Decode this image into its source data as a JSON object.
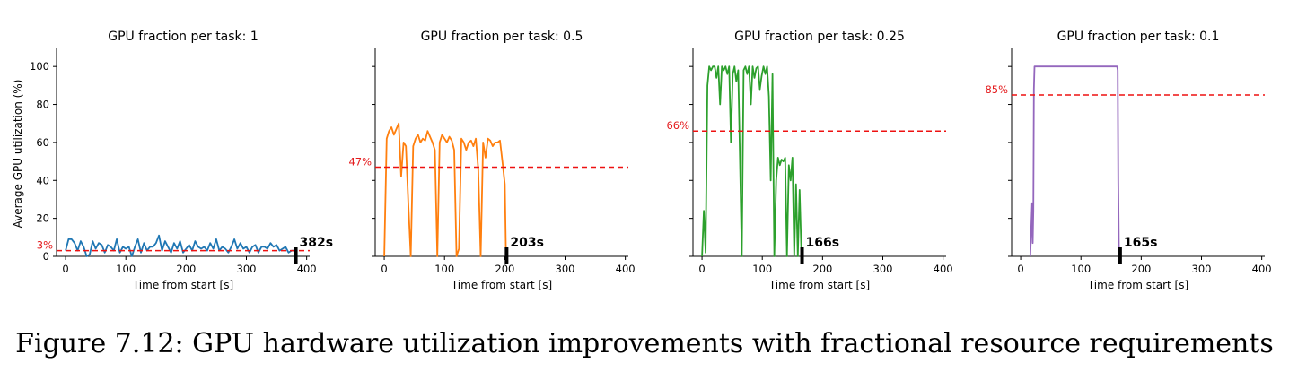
{
  "figure": {
    "caption": "Figure 7.12: GPU hardware utilization improvements with fractional resource requirements"
  },
  "colors": {
    "average_line": "#ee1111",
    "axis": "#000000"
  },
  "chart_data": [
    {
      "type": "line",
      "title": "GPU fraction per task: 1",
      "xlabel": "Time from start [s]",
      "ylabel": "Average GPU utilization (%)",
      "xlim": [
        -15,
        405
      ],
      "ylim": [
        0,
        110
      ],
      "xticks": [
        0,
        100,
        200,
        300,
        400
      ],
      "yticks": [
        0,
        20,
        40,
        60,
        80,
        100
      ],
      "color": "#1f77b4",
      "average": 3,
      "average_label": "3%",
      "runtime": 382,
      "runtime_label": "382s",
      "series": [
        {
          "x": [
            0,
            5,
            10,
            15,
            20,
            25,
            30,
            35,
            40,
            45,
            50,
            55,
            60,
            65,
            70,
            75,
            80,
            85,
            90,
            95,
            100,
            105,
            110,
            115,
            120,
            125,
            130,
            135,
            140,
            145,
            150,
            155,
            160,
            165,
            170,
            175,
            180,
            185,
            190,
            195,
            200,
            205,
            210,
            215,
            220,
            225,
            230,
            235,
            240,
            245,
            250,
            255,
            260,
            265,
            270,
            275,
            280,
            285,
            290,
            295,
            300,
            305,
            310,
            315,
            320,
            325,
            330,
            335,
            340,
            345,
            350,
            355,
            360,
            365,
            370,
            375,
            380
          ],
          "y": [
            3,
            9,
            9,
            7,
            3,
            8,
            5,
            0,
            1,
            8,
            4,
            7,
            6,
            2,
            6,
            5,
            3,
            9,
            2,
            5,
            4,
            5,
            0,
            5,
            9,
            2,
            7,
            3,
            5,
            5,
            7,
            11,
            3,
            8,
            5,
            2,
            7,
            4,
            8,
            2,
            4,
            6,
            3,
            8,
            5,
            4,
            5,
            3,
            7,
            4,
            9,
            3,
            5,
            4,
            2,
            5,
            9,
            4,
            7,
            4,
            5,
            2,
            5,
            6,
            2,
            5,
            5,
            4,
            7,
            5,
            6,
            3,
            4,
            5,
            2,
            3,
            3
          ]
        }
      ]
    },
    {
      "type": "line",
      "title": "GPU fraction per task: 0.5",
      "xlabel": "Time from start [s]",
      "ylabel": "",
      "xlim": [
        -15,
        405
      ],
      "ylim": [
        0,
        110
      ],
      "xticks": [
        0,
        100,
        200,
        300,
        400
      ],
      "yticks": [
        0,
        20,
        40,
        60,
        80,
        100
      ],
      "color": "#ff7f0e",
      "average": 47,
      "average_label": "47%",
      "runtime": 203,
      "runtime_label": "203s",
      "series": [
        {
          "x": [
            0,
            4,
            8,
            12,
            16,
            20,
            24,
            28,
            32,
            36,
            40,
            44,
            48,
            52,
            56,
            60,
            64,
            68,
            72,
            76,
            80,
            84,
            88,
            92,
            96,
            100,
            104,
            108,
            112,
            116,
            120,
            124,
            128,
            132,
            136,
            140,
            144,
            148,
            152,
            156,
            160,
            164,
            168,
            172,
            176,
            180,
            184,
            188,
            192,
            196,
            200,
            202
          ],
          "y": [
            0,
            62,
            66,
            68,
            64,
            67,
            70,
            42,
            60,
            58,
            28,
            0,
            58,
            62,
            64,
            60,
            62,
            61,
            66,
            63,
            60,
            56,
            0,
            60,
            64,
            62,
            60,
            63,
            61,
            56,
            0,
            4,
            62,
            60,
            56,
            60,
            61,
            58,
            62,
            46,
            0,
            60,
            52,
            62,
            61,
            58,
            60,
            60,
            61,
            50,
            38,
            0
          ]
        }
      ]
    },
    {
      "type": "line",
      "title": "GPU fraction per task: 0.25",
      "xlabel": "Time from start [s]",
      "ylabel": "",
      "xlim": [
        -15,
        405
      ],
      "ylim": [
        0,
        110
      ],
      "xticks": [
        0,
        100,
        200,
        300,
        400
      ],
      "yticks": [
        0,
        20,
        40,
        60,
        80,
        100
      ],
      "color": "#2ca02c",
      "average": 66,
      "average_label": "66%",
      "runtime": 166,
      "runtime_label": "166s",
      "series": [
        {
          "x": [
            0,
            3,
            6,
            9,
            12,
            15,
            18,
            21,
            24,
            27,
            30,
            33,
            36,
            39,
            42,
            45,
            48,
            51,
            54,
            57,
            60,
            63,
            66,
            69,
            72,
            75,
            78,
            81,
            84,
            87,
            90,
            93,
            96,
            99,
            102,
            105,
            108,
            111,
            114,
            117,
            120,
            123,
            126,
            129,
            132,
            135,
            138,
            141,
            144,
            147,
            150,
            153,
            156,
            159,
            162,
            165
          ],
          "y": [
            0,
            24,
            2,
            90,
            100,
            98,
            100,
            100,
            94,
            100,
            80,
            100,
            98,
            100,
            96,
            100,
            60,
            96,
            100,
            92,
            98,
            50,
            0,
            98,
            100,
            96,
            100,
            80,
            100,
            94,
            99,
            100,
            88,
            95,
            100,
            96,
            100,
            84,
            40,
            96,
            0,
            40,
            52,
            48,
            51,
            50,
            52,
            0,
            48,
            40,
            52,
            0,
            38,
            0,
            35,
            0
          ]
        }
      ]
    },
    {
      "type": "line",
      "title": "GPU fraction per task: 0.1",
      "xlabel": "Time from start [s]",
      "ylabel": "",
      "xlim": [
        -15,
        405
      ],
      "ylim": [
        0,
        110
      ],
      "xticks": [
        0,
        100,
        200,
        300,
        400
      ],
      "yticks": [
        0,
        20,
        40,
        60,
        80,
        100
      ],
      "color": "#9467bd",
      "average": 85,
      "average_label": "85%",
      "runtime": 165,
      "runtime_label": "165s",
      "series": [
        {
          "x": [
            16,
            18,
            19,
            20,
            21,
            22,
            23,
            25,
            30,
            160,
            161,
            162,
            163,
            164,
            165
          ],
          "y": [
            0,
            20,
            28,
            7,
            24,
            88,
            100,
            100,
            100,
            100,
            98,
            40,
            5,
            2,
            0
          ]
        }
      ]
    }
  ]
}
